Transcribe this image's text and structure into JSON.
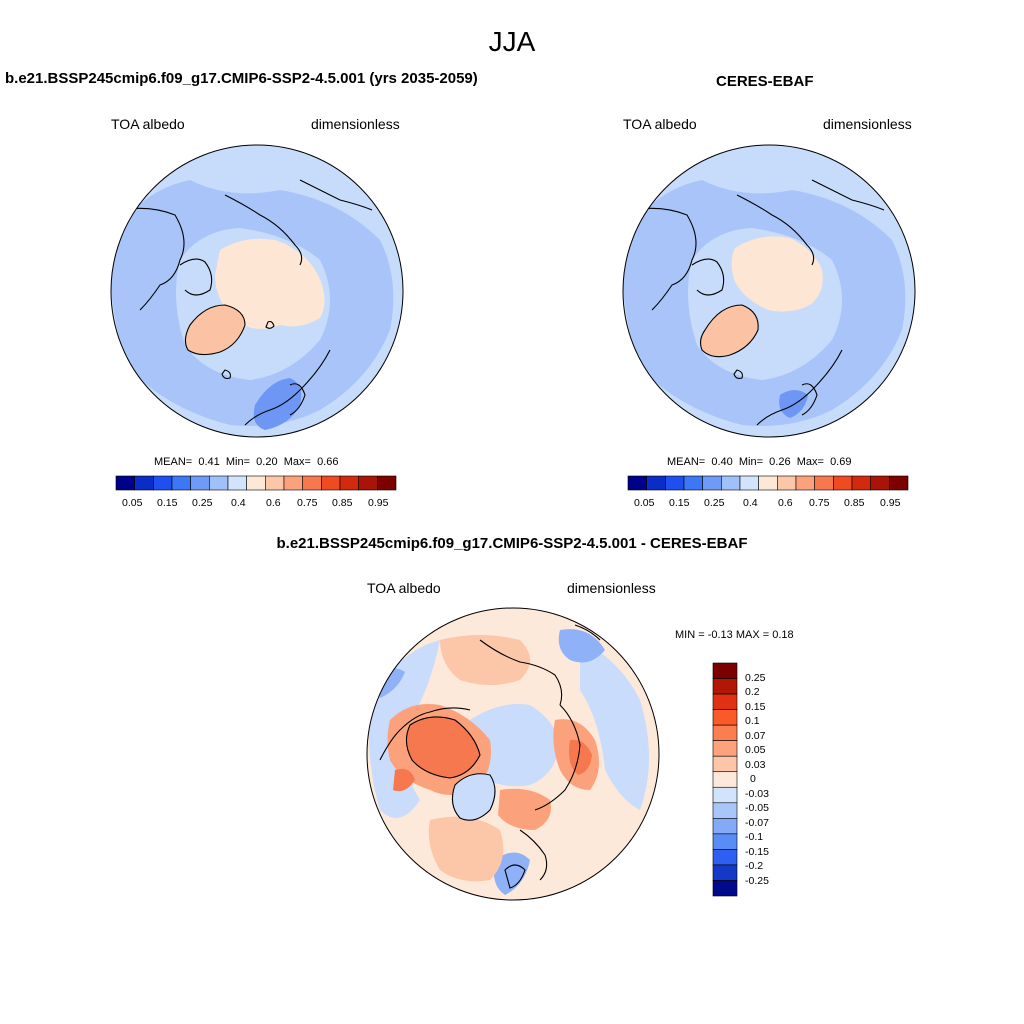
{
  "figure": {
    "season": "JJA",
    "panels": [
      {
        "title": "b.e21.BSSP245cmip6.f09_g17.CMIP6-SSP2-4.5.001 (yrs 2035-2059)",
        "variable": "TOA albedo",
        "units": "dimensionless",
        "mean_label": "MEAN=",
        "mean": "0.41",
        "min_label": "Min=",
        "min": "0.20",
        "max_label": "Max=",
        "max": "0.66"
      },
      {
        "title": "CERES-EBAF",
        "variable": "TOA albedo",
        "units": "dimensionless",
        "mean_label": "MEAN=",
        "mean": "0.40",
        "min_label": "Min=",
        "min": "0.26",
        "max_label": "Max=",
        "max": "0.69"
      }
    ],
    "diff": {
      "title": "b.e21.BSSP245cmip6.f09_g17.CMIP6-SSP2-4.5.001 - CERES-EBAF",
      "variable": "TOA albedo",
      "units": "dimensionless",
      "minmax": "MIN =  -0.13 MAX =  0.18"
    },
    "colorbar_abs": {
      "labels": [
        "0.05",
        "0.15",
        "0.25",
        "0.4",
        "0.6",
        "0.75",
        "0.85",
        "0.95"
      ],
      "colors": [
        "#00008b",
        "#0a2dc8",
        "#1e50f0",
        "#3c78f5",
        "#6e9bf7",
        "#a0c0fa",
        "#d2e4fc",
        "#fde7d6",
        "#fcc6a8",
        "#fba27c",
        "#f5784e",
        "#ee4b23",
        "#d22a0c",
        "#a81405",
        "#7d0000"
      ]
    },
    "colorbar_diff": {
      "labels": [
        "0.25",
        "0.2",
        "0.15",
        "0.1",
        "0.07",
        "0.05",
        "0.03",
        "0",
        "-0.03",
        "-0.05",
        "-0.07",
        "-0.1",
        "-0.15",
        "-0.2",
        "-0.25"
      ],
      "colors": [
        "#7d0000",
        "#b21605",
        "#e03212",
        "#fa5a28",
        "#fb7e50",
        "#fca27c",
        "#fdc6a8",
        "#fde9da",
        "#d2e4fc",
        "#a8c6fa",
        "#84aaf7",
        "#5a8cf5",
        "#2e5ff0",
        "#1438c8",
        "#000a8c"
      ]
    },
    "map_colors": {
      "bg_blue": "#c7dcfb",
      "mid_blue": "#a9c4f8",
      "deep_blue": "#6e96f4",
      "ice_pale": "#fde6d4",
      "greenland": "#fbc3a3",
      "diff_zero": "#fde9da",
      "diff_pos1": "#fcc6a8",
      "diff_pos2": "#fba27c",
      "diff_pos3": "#f5784e",
      "diff_neg1": "#c9dcfb",
      "diff_neg2": "#8fb1f8"
    }
  }
}
